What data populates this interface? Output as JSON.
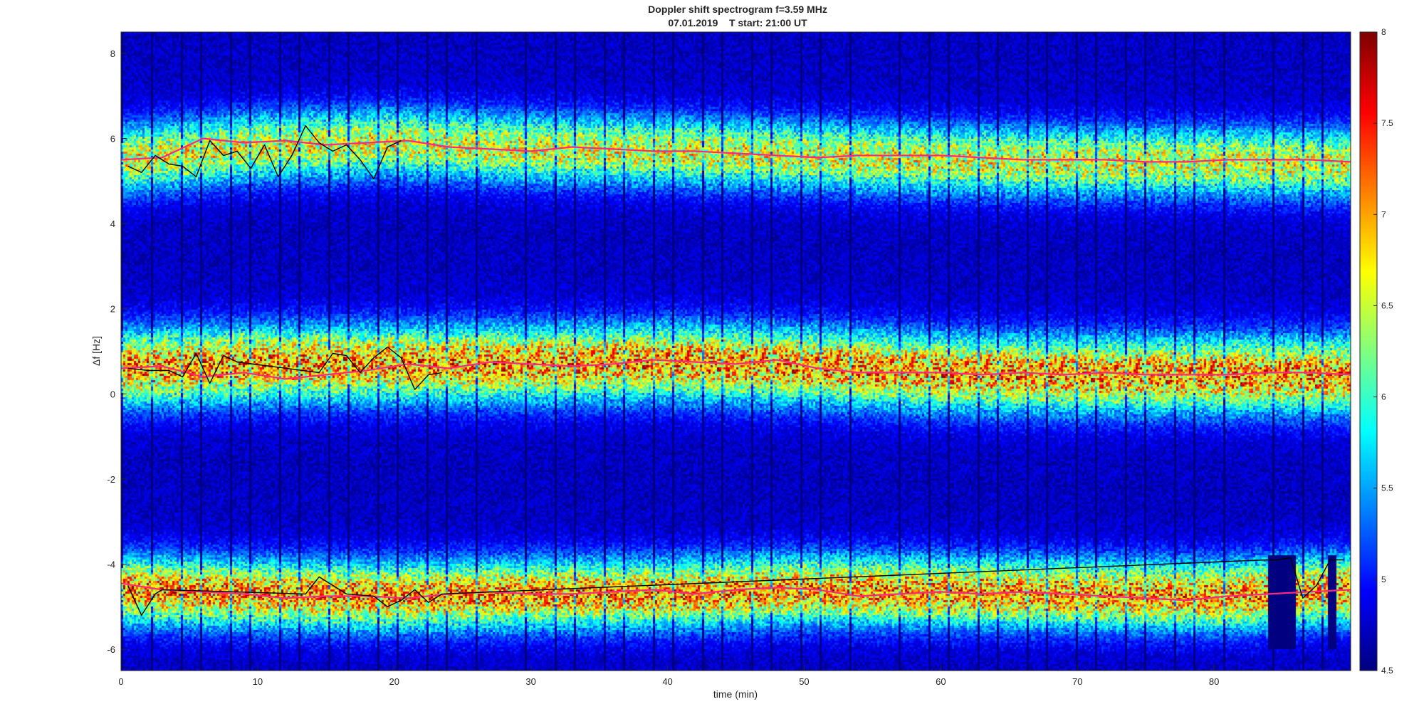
{
  "chart_data": {
    "type": "heatmap",
    "title": "Doppler shift spectrogram f=3.59 MHz",
    "subtitle": "07.01.2019    T start: 21:00 UT",
    "xlabel": "time (min)",
    "ylabel": "Δf [Hz]",
    "xlim": [
      0,
      90
    ],
    "ylim": [
      -6.5,
      8.5
    ],
    "x_ticks": [
      0,
      10,
      20,
      30,
      40,
      50,
      60,
      70,
      80
    ],
    "y_ticks": [
      -6,
      -4,
      -2,
      0,
      2,
      4,
      6,
      8
    ],
    "colorbar": {
      "colormap": "jet",
      "limits": [
        4.5,
        8
      ],
      "ticks": [
        4.5,
        5,
        5.5,
        6,
        6.5,
        7,
        7.5,
        8
      ]
    },
    "grid": false,
    "frame_interval_min": 0.72,
    "bands": [
      {
        "name": "upper",
        "center": [
          [
            0,
            5.5
          ],
          [
            10,
            5.8
          ],
          [
            20,
            5.9
          ],
          [
            30,
            5.75
          ],
          [
            40,
            5.7
          ],
          [
            50,
            5.6
          ],
          [
            60,
            5.5
          ],
          [
            70,
            5.45
          ],
          [
            80,
            5.45
          ],
          [
            90,
            5.4
          ]
        ],
        "half_width": 0.9
      },
      {
        "name": "middle",
        "center": [
          [
            0,
            0.6
          ],
          [
            10,
            0.7
          ],
          [
            20,
            0.7
          ],
          [
            30,
            0.7
          ],
          [
            40,
            0.75
          ],
          [
            50,
            0.65
          ],
          [
            60,
            0.5
          ],
          [
            70,
            0.45
          ],
          [
            80,
            0.45
          ],
          [
            90,
            0.45
          ]
        ],
        "half_width": 1.0
      },
      {
        "name": "lower",
        "center": [
          [
            0,
            -4.6
          ],
          [
            10,
            -4.7
          ],
          [
            20,
            -4.75
          ],
          [
            30,
            -4.7
          ],
          [
            40,
            -4.7
          ],
          [
            50,
            -4.6
          ],
          [
            60,
            -4.65
          ],
          [
            70,
            -4.7
          ],
          [
            80,
            -4.75
          ],
          [
            90,
            -4.6
          ]
        ],
        "half_width": 0.9
      }
    ],
    "series": [
      {
        "band": "upper",
        "color": "#ff2a7f",
        "points": [
          [
            0,
            5.5
          ],
          [
            3,
            5.55
          ],
          [
            6,
            6.0
          ],
          [
            9,
            5.9
          ],
          [
            12,
            5.95
          ],
          [
            15,
            5.85
          ],
          [
            18,
            5.9
          ],
          [
            21,
            5.95
          ],
          [
            24,
            5.8
          ],
          [
            27,
            5.75
          ],
          [
            30,
            5.7
          ],
          [
            33,
            5.8
          ],
          [
            36,
            5.75
          ],
          [
            39,
            5.7
          ],
          [
            42,
            5.7
          ],
          [
            45,
            5.65
          ],
          [
            48,
            5.6
          ],
          [
            51,
            5.55
          ],
          [
            54,
            5.6
          ],
          [
            57,
            5.6
          ],
          [
            60,
            5.6
          ],
          [
            63,
            5.55
          ],
          [
            66,
            5.5
          ],
          [
            69,
            5.5
          ],
          [
            72,
            5.5
          ],
          [
            75,
            5.45
          ],
          [
            78,
            5.45
          ],
          [
            81,
            5.5
          ],
          [
            84,
            5.5
          ],
          [
            87,
            5.5
          ],
          [
            90,
            5.45
          ]
        ]
      },
      {
        "band": "middle",
        "color": "#ff2a7f",
        "points": [
          [
            0,
            0.6
          ],
          [
            3,
            0.65
          ],
          [
            6,
            0.4
          ],
          [
            9,
            0.5
          ],
          [
            12,
            0.35
          ],
          [
            15,
            0.45
          ],
          [
            18,
            0.55
          ],
          [
            21,
            0.7
          ],
          [
            24,
            0.6
          ],
          [
            27,
            0.75
          ],
          [
            30,
            0.7
          ],
          [
            33,
            0.65
          ],
          [
            36,
            0.7
          ],
          [
            39,
            0.8
          ],
          [
            42,
            0.75
          ],
          [
            45,
            0.7
          ],
          [
            48,
            0.8
          ],
          [
            51,
            0.6
          ],
          [
            54,
            0.5
          ],
          [
            57,
            0.5
          ],
          [
            60,
            0.5
          ],
          [
            63,
            0.45
          ],
          [
            66,
            0.5
          ],
          [
            69,
            0.45
          ],
          [
            72,
            0.5
          ],
          [
            75,
            0.45
          ],
          [
            78,
            0.45
          ],
          [
            81,
            0.45
          ],
          [
            84,
            0.5
          ],
          [
            87,
            0.5
          ],
          [
            90,
            0.45
          ]
        ]
      },
      {
        "band": "lower",
        "color": "#ff2a7f",
        "points": [
          [
            0,
            -4.45
          ],
          [
            3,
            -4.6
          ],
          [
            6,
            -4.65
          ],
          [
            9,
            -4.7
          ],
          [
            12,
            -4.8
          ],
          [
            15,
            -4.75
          ],
          [
            18,
            -4.75
          ],
          [
            21,
            -4.8
          ],
          [
            24,
            -4.7
          ],
          [
            27,
            -4.65
          ],
          [
            30,
            -4.7
          ],
          [
            33,
            -4.7
          ],
          [
            36,
            -4.65
          ],
          [
            39,
            -4.6
          ],
          [
            42,
            -4.7
          ],
          [
            45,
            -4.6
          ],
          [
            48,
            -4.55
          ],
          [
            51,
            -4.6
          ],
          [
            54,
            -4.75
          ],
          [
            57,
            -4.7
          ],
          [
            60,
            -4.65
          ],
          [
            63,
            -4.7
          ],
          [
            66,
            -4.65
          ],
          [
            69,
            -4.7
          ],
          [
            72,
            -4.75
          ],
          [
            75,
            -4.8
          ],
          [
            78,
            -4.85
          ],
          [
            81,
            -4.75
          ],
          [
            84,
            -4.7
          ],
          [
            87,
            -4.65
          ],
          [
            90,
            -4.6
          ]
        ]
      }
    ],
    "overlays": [
      {
        "band": "upper",
        "color": "#000000",
        "points": [
          [
            0.5,
            5.35
          ],
          [
            1.5,
            5.2
          ],
          [
            2.5,
            5.6
          ],
          [
            3.5,
            5.4
          ],
          [
            4.5,
            5.35
          ],
          [
            5.5,
            5.1
          ],
          [
            6.5,
            5.95
          ],
          [
            7.5,
            5.6
          ],
          [
            8.5,
            5.7
          ],
          [
            9.5,
            5.3
          ],
          [
            10.5,
            5.85
          ],
          [
            11.5,
            5.1
          ],
          [
            12.5,
            5.6
          ],
          [
            13.5,
            6.3
          ],
          [
            14.5,
            5.9
          ],
          [
            15.5,
            5.7
          ],
          [
            16.5,
            5.85
          ],
          [
            17.5,
            5.5
          ],
          [
            18.5,
            5.05
          ],
          [
            19.5,
            5.8
          ],
          [
            20.5,
            5.95
          ]
        ]
      },
      {
        "band": "middle",
        "color": "#000000",
        "points": [
          [
            0.5,
            0.6
          ],
          [
            2.0,
            0.55
          ],
          [
            3.5,
            0.55
          ],
          [
            4.5,
            0.4
          ],
          [
            5.5,
            0.95
          ],
          [
            6.5,
            0.25
          ],
          [
            7.5,
            0.9
          ],
          [
            8.5,
            0.75
          ],
          [
            14.5,
            0.5
          ],
          [
            15.5,
            0.95
          ],
          [
            16.5,
            0.9
          ],
          [
            17.5,
            0.5
          ],
          [
            18.5,
            0.85
          ],
          [
            19.5,
            1.1
          ],
          [
            20.5,
            0.85
          ],
          [
            21.5,
            0.1
          ],
          [
            22.5,
            0.45
          ],
          [
            23.5,
            0.5
          ]
        ]
      },
      {
        "band": "lower",
        "color": "#000000",
        "points": [
          [
            0.5,
            -4.5
          ],
          [
            1.5,
            -5.2
          ],
          [
            2.5,
            -4.7
          ],
          [
            3.0,
            -4.6
          ],
          [
            13.5,
            -4.7
          ],
          [
            14.5,
            -4.3
          ],
          [
            15.5,
            -4.5
          ],
          [
            16.5,
            -4.7
          ],
          [
            18.5,
            -4.75
          ],
          [
            19.5,
            -5.0
          ],
          [
            20.5,
            -4.85
          ],
          [
            21.5,
            -4.6
          ],
          [
            22.5,
            -4.9
          ],
          [
            23.5,
            -4.7
          ],
          [
            83.8,
            -3.9
          ],
          [
            84.6,
            -3.9
          ],
          [
            85.6,
            -3.85
          ],
          [
            86.5,
            -4.8
          ],
          [
            87.5,
            -4.5
          ],
          [
            88.5,
            -3.9
          ],
          [
            89.5,
            -3.9
          ]
        ]
      }
    ],
    "gaps": [
      {
        "from": 84.0,
        "to": 86.0
      },
      {
        "from": 88.3,
        "to": 89.0
      }
    ]
  }
}
